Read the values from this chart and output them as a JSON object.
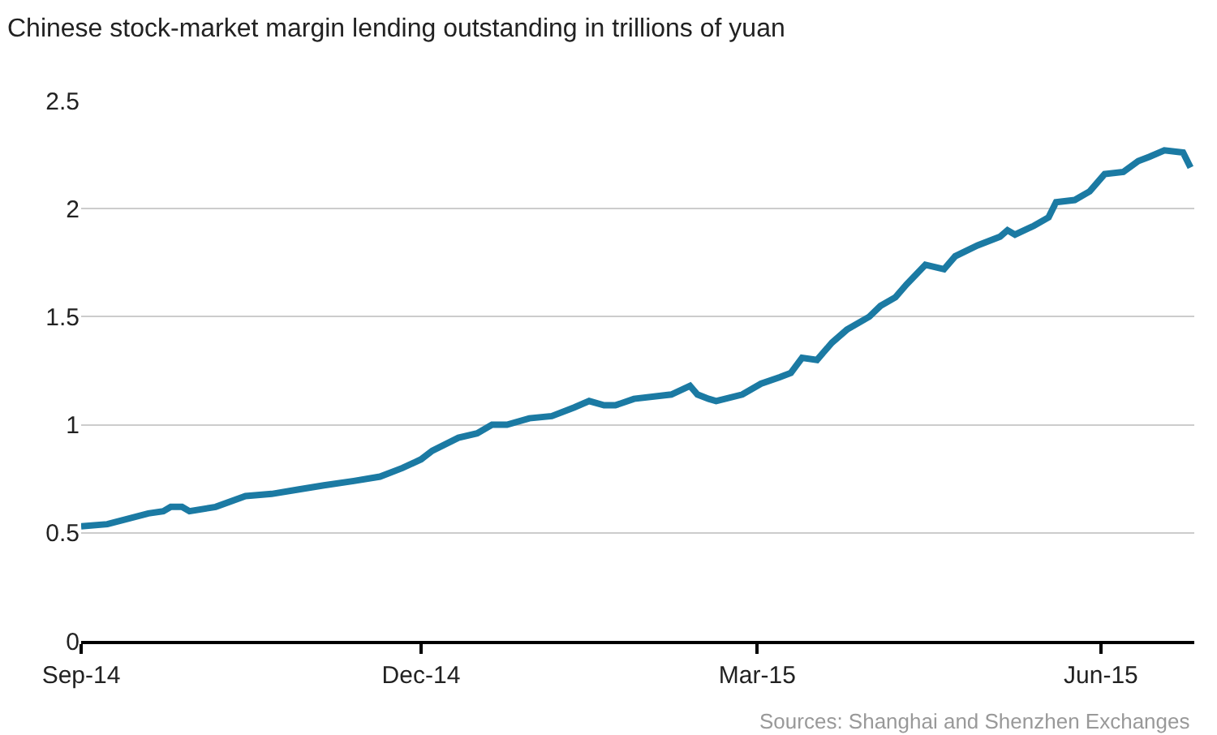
{
  "chart_data": {
    "type": "line",
    "title": "Chinese stock-market margin lending outstanding in trillions of yuan",
    "x": [
      "2014-09-01",
      "2014-09-08",
      "2014-09-19",
      "2014-09-23",
      "2014-09-25",
      "2014-09-28",
      "2014-09-30",
      "2014-10-07",
      "2014-10-15",
      "2014-10-22",
      "2014-10-29",
      "2014-11-05",
      "2014-11-13",
      "2014-11-20",
      "2014-11-26",
      "2014-12-01",
      "2014-12-04",
      "2014-12-11",
      "2014-12-16",
      "2014-12-20",
      "2014-12-24",
      "2014-12-30",
      "2015-01-05",
      "2015-01-11",
      "2015-01-15",
      "2015-01-19",
      "2015-01-22",
      "2015-01-27",
      "2015-02-06",
      "2015-02-11",
      "2015-02-13",
      "2015-02-16",
      "2015-02-18",
      "2015-02-25",
      "2015-03-02",
      "2015-03-07",
      "2015-03-10",
      "2015-03-13",
      "2015-03-17",
      "2015-03-21",
      "2015-03-25",
      "2015-03-31",
      "2015-04-03",
      "2015-04-07",
      "2015-04-10",
      "2015-04-15",
      "2015-04-20",
      "2015-04-23",
      "2015-04-29",
      "2015-05-05",
      "2015-05-07",
      "2015-05-09",
      "2015-05-14",
      "2015-05-18",
      "2015-05-20",
      "2015-05-25",
      "2015-05-29",
      "2015-06-02",
      "2015-06-07",
      "2015-06-11",
      "2015-06-14",
      "2015-06-18",
      "2015-06-23",
      "2015-06-25"
    ],
    "series": [
      {
        "color": "#1b7aa3",
        "values": [
          0.53,
          0.54,
          0.59,
          0.6,
          0.62,
          0.62,
          0.6,
          0.62,
          0.67,
          0.68,
          0.7,
          0.72,
          0.74,
          0.76,
          0.8,
          0.84,
          0.88,
          0.94,
          0.96,
          1.0,
          1.0,
          1.03,
          1.04,
          1.08,
          1.11,
          1.09,
          1.09,
          1.12,
          1.14,
          1.18,
          1.14,
          1.12,
          1.11,
          1.14,
          1.19,
          1.22,
          1.24,
          1.31,
          1.3,
          1.38,
          1.44,
          1.5,
          1.55,
          1.59,
          1.65,
          1.74,
          1.72,
          1.78,
          1.83,
          1.87,
          1.9,
          1.88,
          1.92,
          1.96,
          2.03,
          2.04,
          2.08,
          2.16,
          2.17,
          2.22,
          2.24,
          2.27,
          2.26,
          2.19
        ]
      }
    ],
    "xlim": [
      "2014-09-01",
      "2015-06-26"
    ],
    "xticks": [
      {
        "value": "2014-09-01",
        "label": "Sep-14"
      },
      {
        "value": "2014-12-01",
        "label": "Dec-14"
      },
      {
        "value": "2015-03-01",
        "label": "Mar-15"
      },
      {
        "value": "2015-06-01",
        "label": "Jun-15"
      }
    ],
    "ylim": [
      0,
      2.5
    ],
    "yticks": [
      0,
      0.5,
      1,
      1.5,
      2,
      2.5
    ],
    "grid": "y",
    "legend": false,
    "marker": "none",
    "line_style": "solid",
    "annotations": [
      "Sources: Shanghai and Shenzhen Exchanges"
    ]
  }
}
